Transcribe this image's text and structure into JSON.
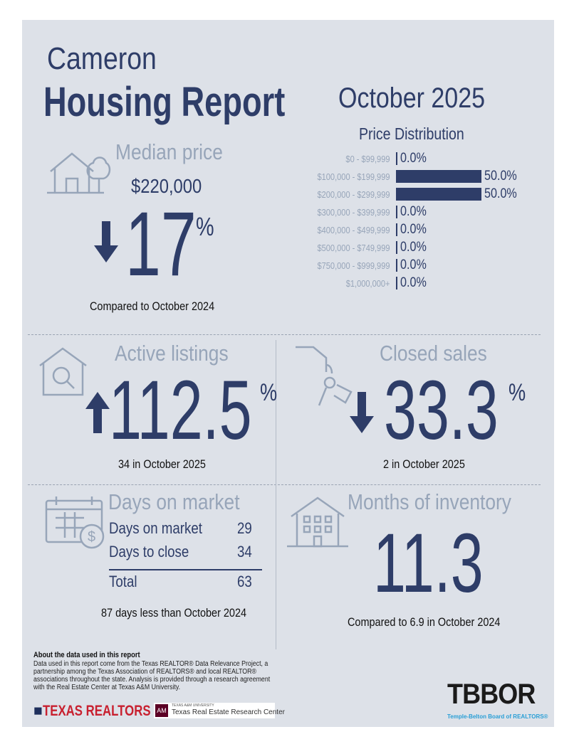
{
  "header": {
    "city": "Cameron",
    "title": "Housing Report",
    "period": "October 2025"
  },
  "colors": {
    "navy": "#2e3d68",
    "label_gray": "#97a5b9",
    "background": "#dde1e8"
  },
  "median_price": {
    "heading": "Median price",
    "value": "$220,000",
    "change": "17",
    "unit": "%",
    "direction": "down",
    "note": "Compared to October 2024",
    "icon": "house-tree-icon"
  },
  "price_distribution": {
    "heading": "Price Distribution",
    "rows": [
      {
        "label": "$0 - $99,999",
        "value": 0.0,
        "text": "0.0%"
      },
      {
        "label": "$100,000 - $199,999",
        "value": 50.0,
        "text": "50.0%"
      },
      {
        "label": "$200,000 - $299,999",
        "value": 50.0,
        "text": "50.0%"
      },
      {
        "label": "$300,000 - $399,999",
        "value": 0.0,
        "text": "0.0%"
      },
      {
        "label": "$400,000 - $499,999",
        "value": 0.0,
        "text": "0.0%"
      },
      {
        "label": "$500,000 - $749,999",
        "value": 0.0,
        "text": "0.0%"
      },
      {
        "label": "$750,000 - $999,999",
        "value": 0.0,
        "text": "0.0%"
      },
      {
        "label": "$1,000,000+",
        "value": 0.0,
        "text": "0.0%"
      }
    ]
  },
  "active_listings": {
    "heading": "Active listings",
    "change": "112.5",
    "unit": "%",
    "direction": "up",
    "note": "34 in October 2025",
    "icon": "house-search-icon"
  },
  "closed_sales": {
    "heading": "Closed sales",
    "change": "33.3",
    "unit": "%",
    "direction": "down",
    "note": "2 in October 2025",
    "icon": "hand-keys-icon"
  },
  "days_on_market": {
    "heading": "Days on market",
    "rows": [
      {
        "label": "Days on market",
        "value": "29"
      },
      {
        "label": "Days to close",
        "value": "34"
      }
    ],
    "total_label": "Total",
    "total_value": "63",
    "note": "87 days less than October 2024",
    "icon": "calendar-dollar-icon"
  },
  "months_inventory": {
    "heading": "Months of inventory",
    "value": "11.3",
    "note": "Compared to 6.9 in October 2024",
    "icon": "building-icon"
  },
  "footer": {
    "about_title": "About the data used in this report",
    "about_text": "Data used in this report come from the Texas REALTOR® Data Relevance Project, a partnership among the Texas Association of REALTORS® and local REALTOR® associations throughout the state. Analysis is provided through a research agreement with the Real Estate Center at Texas A&M University.",
    "logo_texas_realtors": "TEXAS REALTORS",
    "logo_tamu_small": "TEXAS A&M UNIVERSITY",
    "logo_tamu": "Texas Real Estate Research Center",
    "logo_tbbor": "TBBOR",
    "logo_tbbor_sub": "Temple-Belton Board of REALTORS®"
  }
}
